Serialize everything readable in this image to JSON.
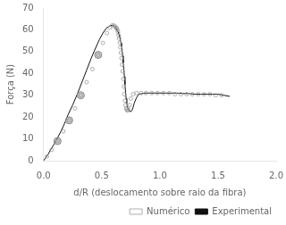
{
  "chart_data": {
    "type": "line",
    "xlabel": "d/R (deslocamento sobre raio da fibra)",
    "ylabel": "Força (N)",
    "xlim": [
      0,
      2
    ],
    "ylim": [
      0,
      70
    ],
    "xticks": [
      {
        "value": 0,
        "label": "0.0"
      },
      0.5,
      {
        "value": 1,
        "label": "1.0"
      },
      1.5,
      {
        "value": 2,
        "label": "2.0"
      }
    ],
    "yticks": [
      0,
      10,
      20,
      30,
      40,
      50,
      60,
      70
    ],
    "grid": false,
    "legend": "lower right",
    "series": [
      {
        "name": "Experimental",
        "type": "line",
        "color": "#111111",
        "x": [
          0.0,
          0.02,
          0.04,
          0.06,
          0.09,
          0.12,
          0.15,
          0.18,
          0.21,
          0.25,
          0.29,
          0.33,
          0.37,
          0.41,
          0.45,
          0.48,
          0.51,
          0.54,
          0.56,
          0.575,
          0.59,
          0.6,
          0.61,
          0.615,
          0.62,
          0.625,
          0.63,
          0.635,
          0.64,
          0.645,
          0.65,
          0.655,
          0.66,
          0.665,
          0.67,
          0.675,
          0.68,
          0.685,
          0.69,
          0.695,
          0.7,
          0.705,
          0.71,
          0.715,
          0.72,
          0.725,
          0.73,
          0.735,
          0.74,
          0.745,
          0.75,
          0.76,
          0.77,
          0.78,
          0.8,
          0.82,
          0.85,
          0.88,
          0.92,
          0.96,
          1.0,
          1.05,
          1.1,
          1.15,
          1.2,
          1.25,
          1.3,
          1.35,
          1.4,
          1.45,
          1.5,
          1.55,
          1.6
        ],
        "values": [
          0.0,
          1.5,
          3.0,
          5.0,
          7.5,
          10.5,
          13.5,
          17.0,
          21.0,
          25.5,
          30.5,
          36.0,
          41.5,
          47.0,
          52.0,
          55.5,
          58.5,
          60.8,
          61.5,
          62.0,
          62.0,
          62.0,
          61.8,
          61.5,
          61.0,
          60.5,
          60.0,
          59.5,
          59.0,
          58.5,
          57.5,
          56.5,
          55.5,
          54.0,
          52.5,
          50.5,
          48.0,
          45.0,
          42.0,
          38.5,
          35.0,
          31.5,
          28.5,
          26.5,
          25.0,
          24.0,
          23.5,
          23.0,
          22.8,
          22.5,
          22.5,
          23.0,
          24.5,
          26.5,
          29.0,
          30.5,
          30.8,
          31.0,
          31.0,
          31.0,
          31.0,
          31.0,
          31.0,
          31.0,
          30.8,
          30.8,
          30.5,
          30.5,
          30.5,
          30.5,
          30.5,
          30.0,
          29.5
        ]
      },
      {
        "name": "Numérico",
        "type": "scatter",
        "marker": "circle",
        "color": "#999999",
        "x": [
          0.03,
          0.07,
          0.12,
          0.17,
          0.22,
          0.27,
          0.32,
          0.37,
          0.42,
          0.47,
          0.51,
          0.545,
          0.57,
          0.59,
          0.605,
          0.615,
          0.625,
          0.63,
          0.635,
          0.64,
          0.645,
          0.65,
          0.655,
          0.66,
          0.665,
          0.67,
          0.675,
          0.68,
          0.685,
          0.69,
          0.695,
          0.7,
          0.705,
          0.71,
          0.715,
          0.72,
          0.73,
          0.74,
          0.75,
          0.77,
          0.8,
          0.84,
          0.88,
          0.93,
          0.98,
          1.03,
          1.08,
          1.13,
          1.18,
          1.23,
          1.28,
          1.33,
          1.38,
          1.43,
          1.48,
          1.53
        ],
        "values": [
          2.0,
          5.0,
          9.0,
          13.5,
          18.5,
          24.0,
          30.0,
          36.0,
          42.0,
          48.5,
          54.0,
          58.5,
          61.0,
          62.0,
          62.0,
          61.5,
          61.0,
          60.5,
          60.0,
          59.0,
          57.5,
          56.0,
          54.0,
          52.0,
          49.5,
          47.0,
          44.0,
          41.0,
          37.5,
          34.0,
          30.5,
          27.5,
          25.5,
          24.0,
          23.5,
          23.0,
          23.5,
          25.5,
          28.5,
          30.5,
          31.0,
          31.0,
          31.0,
          31.0,
          31.0,
          31.0,
          31.0,
          30.5,
          30.5,
          30.5,
          30.5,
          30.5,
          30.5,
          30.5,
          30.0,
          30.0
        ]
      },
      {
        "type": "scatter",
        "marker": "circle",
        "color": "#888888",
        "x": [
          0.12,
          0.22,
          0.32,
          0.47
        ],
        "values": [
          9.0,
          18.5,
          30.0,
          48.5
        ]
      }
    ]
  }
}
